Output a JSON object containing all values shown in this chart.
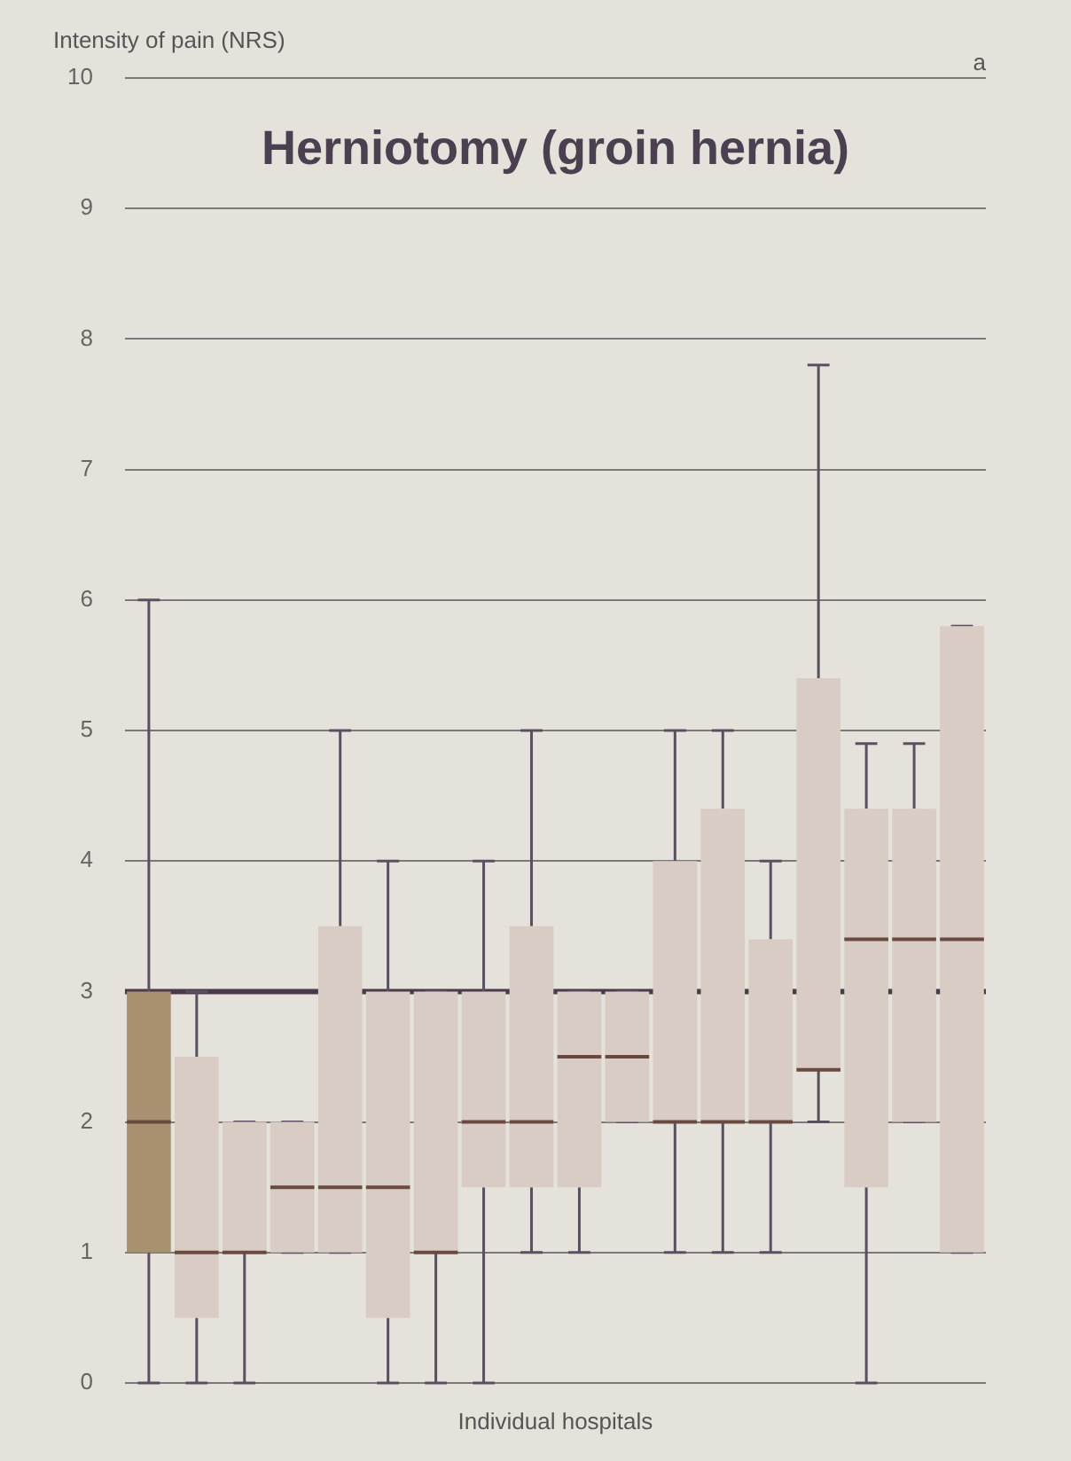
{
  "chart_data": {
    "type": "box",
    "title": "Herniotomy (groin hernia)",
    "ylabel": "Intensity of pain (NRS)",
    "xlabel": "Individual hospitals",
    "annotations": [
      "a"
    ],
    "categories": [
      null,
      null,
      null,
      null,
      null,
      null,
      null,
      null,
      null,
      null,
      null,
      null,
      null,
      null,
      null,
      null,
      null,
      null
    ],
    "colors": [
      "#a89070",
      "#d8ccc4",
      "#d8ccc4",
      "#d8ccc4",
      "#d8ccc4",
      "#d8ccc4",
      "#d8ccc4",
      "#d8ccc4",
      "#d8ccc4",
      "#d8ccc4",
      "#d8ccc4",
      "#d8ccc4",
      "#d8ccc4",
      "#d8ccc4",
      "#d8ccc4",
      "#d8ccc4",
      "#d8ccc4",
      "#d8ccc4"
    ],
    "boxes": [
      {
        "low": 0,
        "q1": 1,
        "median": 2,
        "q3": 3,
        "high": 6
      },
      {
        "low": 0,
        "q1": 0.5,
        "median": 1,
        "q3": 2.5,
        "high": 3
      },
      {
        "low": 0,
        "q1": 1,
        "median": 1,
        "q3": 2,
        "high": 2
      },
      {
        "low": 1,
        "q1": 1,
        "median": 1.5,
        "q3": 2,
        "high": 2
      },
      {
        "low": 1,
        "q1": 1,
        "median": 1.5,
        "q3": 3.5,
        "high": 5
      },
      {
        "low": 0,
        "q1": 0.5,
        "median": 1.5,
        "q3": 3,
        "high": 4
      },
      {
        "low": 0,
        "q1": 1,
        "median": 1,
        "q3": 3,
        "high": 3
      },
      {
        "low": 0,
        "q1": 1.5,
        "median": 2,
        "q3": 3,
        "high": 4
      },
      {
        "low": 1,
        "q1": 1.5,
        "median": 2,
        "q3": 3.5,
        "high": 5
      },
      {
        "low": 1,
        "q1": 1.5,
        "median": 2.5,
        "q3": 3,
        "high": 3
      },
      {
        "low": 2,
        "q1": 2,
        "median": 2.5,
        "q3": 3,
        "high": 3
      },
      {
        "low": 1,
        "q1": 2,
        "median": 2,
        "q3": 4,
        "high": 5
      },
      {
        "low": 1,
        "q1": 2,
        "median": 2,
        "q3": 4.4,
        "high": 5
      },
      {
        "low": 1,
        "q1": 2,
        "median": 2,
        "q3": 3.4,
        "high": 4
      },
      {
        "low": 2,
        "q1": 2.4,
        "median": 2.4,
        "q3": 5.4,
        "high": 7.8
      },
      {
        "low": 0,
        "q1": 1.5,
        "median": 3.4,
        "q3": 4.4,
        "high": 4.9
      },
      {
        "low": 2,
        "q1": 2,
        "median": 3.4,
        "q3": 4.4,
        "high": 4.9
      },
      {
        "low": 1,
        "q1": 1,
        "median": 3.4,
        "q3": 5.8,
        "high": 5.8
      }
    ],
    "ylim": [
      0,
      10
    ],
    "yticks": [
      0,
      1,
      2,
      3,
      4,
      5,
      6,
      7,
      8,
      9,
      10
    ],
    "grid": "y",
    "ref_lines": [
      {
        "axis": "y",
        "value": 3,
        "color": "#4a3a4a"
      }
    ]
  }
}
